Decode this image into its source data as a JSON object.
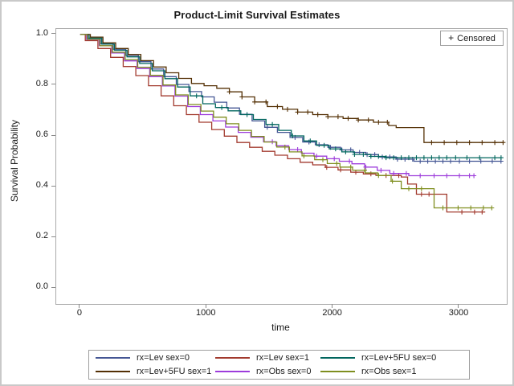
{
  "title": "Product-Limit Survival Estimates",
  "censored_box": {
    "marker": "+",
    "label": "Censored"
  },
  "colors": {
    "frame_border": "#ababab",
    "tick": "#8a8a8a",
    "box_border": "#9f9f9f",
    "text": "#1a1a1a",
    "outer_border": "#c9c9c9"
  },
  "chart_data": {
    "type": "line",
    "subtype": "kaplan-meier-step",
    "title": "Product-Limit Survival Estimates",
    "xlabel": "time",
    "ylabel": "Survival Probability",
    "xlim": [
      -190,
      3375
    ],
    "ylim": [
      -0.063,
      1.022
    ],
    "x_ticks": [
      0,
      1000,
      2000,
      3000
    ],
    "y_ticks": [
      0.0,
      0.2,
      0.4,
      0.6,
      0.8,
      1.0
    ],
    "grid": false,
    "legend_position": "bottom",
    "legend_columns": 3,
    "censored_marker": "+",
    "series": [
      {
        "name": "rx=Lev sex=0",
        "color": "#445694",
        "points": [
          [
            0,
            1.0
          ],
          [
            60,
            0.985
          ],
          [
            160,
            0.963
          ],
          [
            260,
            0.942
          ],
          [
            360,
            0.918
          ],
          [
            460,
            0.893
          ],
          [
            560,
            0.864
          ],
          [
            660,
            0.834
          ],
          [
            760,
            0.803
          ],
          [
            860,
            0.775
          ],
          [
            960,
            0.754
          ],
          [
            1060,
            0.733
          ],
          [
            1160,
            0.71
          ],
          [
            1260,
            0.685
          ],
          [
            1360,
            0.659
          ],
          [
            1460,
            0.634
          ],
          [
            1560,
            0.614
          ],
          [
            1660,
            0.594
          ],
          [
            1760,
            0.576
          ],
          [
            1860,
            0.565
          ],
          [
            1960,
            0.555
          ],
          [
            2060,
            0.545
          ],
          [
            2160,
            0.535
          ],
          [
            2260,
            0.526
          ],
          [
            2360,
            0.517
          ],
          [
            2500,
            0.508
          ],
          [
            2640,
            0.5
          ],
          [
            3329,
            0.5
          ]
        ],
        "censor_times": [
          1480,
          1700,
          1810,
          1890,
          1980,
          2070,
          2140,
          2210,
          2270,
          2330,
          2390,
          2450,
          2510,
          2570,
          2630,
          2690,
          2750,
          2810,
          2870,
          2930,
          3000,
          3080,
          3170,
          3260,
          3329
        ]
      },
      {
        "name": "rx=Lev sex=1",
        "color": "#A23A2E",
        "points": [
          [
            0,
            1.0
          ],
          [
            40,
            0.976
          ],
          [
            140,
            0.945
          ],
          [
            240,
            0.91
          ],
          [
            340,
            0.874
          ],
          [
            440,
            0.838
          ],
          [
            540,
            0.798
          ],
          [
            640,
            0.758
          ],
          [
            740,
            0.719
          ],
          [
            840,
            0.684
          ],
          [
            940,
            0.654
          ],
          [
            1040,
            0.625
          ],
          [
            1140,
            0.599
          ],
          [
            1240,
            0.574
          ],
          [
            1340,
            0.555
          ],
          [
            1440,
            0.539
          ],
          [
            1540,
            0.524
          ],
          [
            1640,
            0.51
          ],
          [
            1740,
            0.496
          ],
          [
            1840,
            0.486
          ],
          [
            1940,
            0.476
          ],
          [
            2040,
            0.466
          ],
          [
            2140,
            0.457
          ],
          [
            2240,
            0.45
          ],
          [
            2340,
            0.444
          ],
          [
            2540,
            0.438
          ],
          [
            2590,
            0.41
          ],
          [
            2660,
            0.37
          ],
          [
            2900,
            0.3
          ],
          [
            3205,
            0.3
          ]
        ],
        "censor_times": [
          1950,
          2060,
          2180,
          2300,
          2420,
          2520,
          2700,
          2760,
          3020,
          3120,
          3180
        ]
      },
      {
        "name": "rx=Lev+5FU sex=0",
        "color": "#01665E",
        "points": [
          [
            0,
            1.0
          ],
          [
            70,
            0.986
          ],
          [
            170,
            0.962
          ],
          [
            270,
            0.938
          ],
          [
            370,
            0.912
          ],
          [
            470,
            0.886
          ],
          [
            570,
            0.857
          ],
          [
            670,
            0.826
          ],
          [
            770,
            0.793
          ],
          [
            870,
            0.758
          ],
          [
            970,
            0.727
          ],
          [
            1070,
            0.712
          ],
          [
            1170,
            0.699
          ],
          [
            1270,
            0.684
          ],
          [
            1370,
            0.665
          ],
          [
            1470,
            0.645
          ],
          [
            1570,
            0.622
          ],
          [
            1670,
            0.6
          ],
          [
            1770,
            0.58
          ],
          [
            1870,
            0.563
          ],
          [
            1970,
            0.549
          ],
          [
            2070,
            0.537
          ],
          [
            2170,
            0.527
          ],
          [
            2300,
            0.519
          ],
          [
            2420,
            0.514
          ],
          [
            3330,
            0.514
          ]
        ],
        "censor_times": [
          920,
          1120,
          1320,
          1520,
          1680,
          1820,
          1930,
          2020,
          2100,
          2170,
          2240,
          2300,
          2360,
          2420,
          2480,
          2540,
          2600,
          2660,
          2720,
          2780,
          2840,
          2900,
          2970,
          3060,
          3160,
          3280,
          3330
        ]
      },
      {
        "name": "rx=Lev+5FU sex=1",
        "color": "#543005",
        "points": [
          [
            0,
            1.0
          ],
          [
            80,
            0.99
          ],
          [
            180,
            0.967
          ],
          [
            280,
            0.945
          ],
          [
            380,
            0.921
          ],
          [
            480,
            0.897
          ],
          [
            580,
            0.872
          ],
          [
            680,
            0.849
          ],
          [
            780,
            0.827
          ],
          [
            880,
            0.807
          ],
          [
            980,
            0.798
          ],
          [
            1080,
            0.788
          ],
          [
            1180,
            0.774
          ],
          [
            1280,
            0.754
          ],
          [
            1380,
            0.734
          ],
          [
            1480,
            0.716
          ],
          [
            1600,
            0.705
          ],
          [
            1720,
            0.694
          ],
          [
            1840,
            0.684
          ],
          [
            1960,
            0.676
          ],
          [
            2080,
            0.669
          ],
          [
            2200,
            0.663
          ],
          [
            2320,
            0.654
          ],
          [
            2440,
            0.641
          ],
          [
            2500,
            0.633
          ],
          [
            2720,
            0.574
          ],
          [
            3346,
            0.574
          ]
        ],
        "censor_times": [
          1180,
          1280,
          1380,
          1470,
          1560,
          1640,
          1720,
          1800,
          1880,
          1960,
          2040,
          2120,
          2200,
          2280,
          2360,
          2430,
          2780,
          2880,
          2980,
          3080,
          3180,
          3280,
          3346
        ]
      },
      {
        "name": "rx=Obs sex=0",
        "color": "#9D3CDB",
        "points": [
          [
            0,
            1.0
          ],
          [
            50,
            0.98
          ],
          [
            150,
            0.956
          ],
          [
            250,
            0.927
          ],
          [
            350,
            0.896
          ],
          [
            450,
            0.866
          ],
          [
            550,
            0.834
          ],
          [
            650,
            0.797
          ],
          [
            750,
            0.757
          ],
          [
            850,
            0.716
          ],
          [
            950,
            0.684
          ],
          [
            1050,
            0.659
          ],
          [
            1150,
            0.635
          ],
          [
            1250,
            0.614
          ],
          [
            1350,
            0.595
          ],
          [
            1450,
            0.577
          ],
          [
            1550,
            0.561
          ],
          [
            1650,
            0.546
          ],
          [
            1750,
            0.532
          ],
          [
            1850,
            0.52
          ],
          [
            1950,
            0.51
          ],
          [
            2050,
            0.5
          ],
          [
            2150,
            0.49
          ],
          [
            2250,
            0.477
          ],
          [
            2350,
            0.464
          ],
          [
            2450,
            0.452
          ],
          [
            2600,
            0.443
          ],
          [
            3115,
            0.443
          ]
        ],
        "censor_times": [
          1520,
          1720,
          1870,
          2010,
          2130,
          2260,
          2380,
          2480,
          2580,
          2690,
          2800,
          2900,
          3000,
          3080,
          3115
        ]
      },
      {
        "name": "rx=Obs sex=1",
        "color": "#7F8E1F",
        "points": [
          [
            0,
            1.0
          ],
          [
            55,
            0.981
          ],
          [
            155,
            0.956
          ],
          [
            255,
            0.93
          ],
          [
            355,
            0.901
          ],
          [
            455,
            0.871
          ],
          [
            555,
            0.839
          ],
          [
            655,
            0.801
          ],
          [
            755,
            0.762
          ],
          [
            855,
            0.724
          ],
          [
            955,
            0.698
          ],
          [
            1055,
            0.674
          ],
          [
            1155,
            0.648
          ],
          [
            1255,
            0.622
          ],
          [
            1355,
            0.598
          ],
          [
            1455,
            0.576
          ],
          [
            1555,
            0.556
          ],
          [
            1655,
            0.537
          ],
          [
            1755,
            0.521
          ],
          [
            1855,
            0.506
          ],
          [
            1955,
            0.491
          ],
          [
            2055,
            0.477
          ],
          [
            2155,
            0.465
          ],
          [
            2255,
            0.454
          ],
          [
            2355,
            0.444
          ],
          [
            2460,
            0.421
          ],
          [
            2540,
            0.392
          ],
          [
            2800,
            0.316
          ],
          [
            3256,
            0.316
          ]
        ],
        "censor_times": [
          1620,
          1770,
          1920,
          2030,
          2140,
          2250,
          2360,
          2470,
          2600,
          2700,
          2870,
          2990,
          3090,
          3190,
          3256
        ]
      }
    ]
  }
}
